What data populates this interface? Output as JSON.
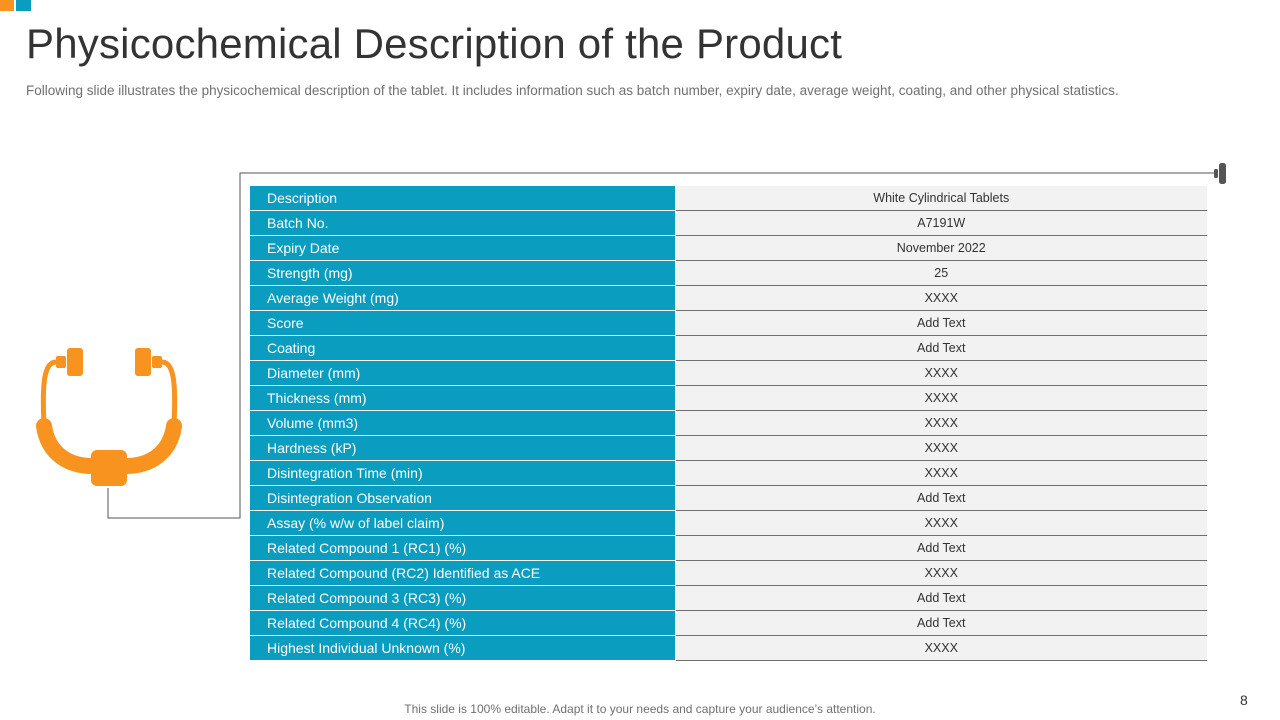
{
  "slide": {
    "title": "Physicochemical Description of the Product",
    "subtitle": "Following slide illustrates the physicochemical description of the tablet. It includes information such as batch number, expiry date, average weight, coating, and other physical statistics.",
    "footer": "This slide is 100% editable. Adapt it to your needs and capture your audience’s attention.",
    "page_number": "8",
    "icon": "stethoscope-icon",
    "colors": {
      "accent_blue": "#0B9DC0",
      "accent_orange": "#F7931E",
      "value_bg": "#F2F2F2"
    }
  },
  "table": {
    "rows": [
      {
        "label": "Description",
        "value": "White Cylindrical Tablets"
      },
      {
        "label": "Batch No.",
        "value": "A7191W"
      },
      {
        "label": "Expiry Date",
        "value": "November  2022"
      },
      {
        "label": "Strength (mg)",
        "value": "25"
      },
      {
        "label": "Average Weight (mg)",
        "value": "XXXX"
      },
      {
        "label": "Score",
        "value": "Add Text"
      },
      {
        "label": "Coating",
        "value": "Add Text"
      },
      {
        "label": "Diameter (mm)",
        "value": "XXXX"
      },
      {
        "label": "Thickness (mm)",
        "value": "XXXX"
      },
      {
        "label": "Volume (mm3)",
        "value": "XXXX"
      },
      {
        "label": "Hardness (kP)",
        "value": "XXXX"
      },
      {
        "label": "Disintegration Time (min)",
        "value": "XXXX"
      },
      {
        "label": "Disintegration Observation",
        "value": "Add Text"
      },
      {
        "label": "Assay (% w/w of label claim)",
        "value": "XXXX"
      },
      {
        "label": "Related Compound 1 (RC1) (%)",
        "value": "Add Text"
      },
      {
        "label": "Related Compound (RC2) Identified as ACE",
        "value": "XXXX"
      },
      {
        "label": "Related Compound 3 (RC3) (%)",
        "value": "Add Text"
      },
      {
        "label": "Related Compound 4 (RC4) (%)",
        "value": "Add Text"
      },
      {
        "label": "Highest Individual Unknown (%)",
        "value": "XXXX"
      }
    ]
  }
}
